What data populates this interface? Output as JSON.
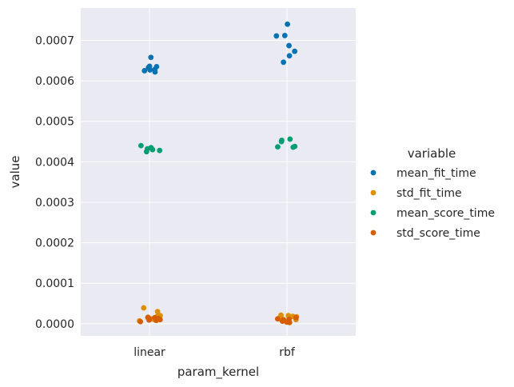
{
  "chart_data": {
    "type": "scatter",
    "style": "stripplot",
    "xlabel": "param_kernel",
    "ylabel": "value",
    "categories": [
      "linear",
      "rbf"
    ],
    "ylim": [
      -3e-05,
      0.00078
    ],
    "yticks": [
      0.0,
      0.0001,
      0.0002,
      0.0003,
      0.0004,
      0.0005,
      0.0006,
      0.0007
    ],
    "ytick_labels": [
      "0.0000",
      "0.0001",
      "0.0002",
      "0.0003",
      "0.0004",
      "0.0005",
      "0.0006",
      "0.0007"
    ],
    "grid": true,
    "legend": {
      "title": "variable",
      "placement": "right"
    },
    "series": [
      {
        "name": "mean_fit_time",
        "color": "#0173b2",
        "points": {
          "linear": [
            0.000628,
            0.000658,
            0.000633,
            0.000625,
            0.000635,
            0.000622,
            0.000636,
            0.000627
          ],
          "rbf": [
            0.00074,
            0.000711,
            0.000687,
            0.000662,
            0.000712,
            0.000673,
            0.000646
          ]
        }
      },
      {
        "name": "std_fit_time",
        "color": "#de8f05",
        "points": {
          "linear": [
            1.5e-05,
            3.9e-05,
            2e-05,
            1e-05,
            3e-05,
            1.8e-05,
            7e-06,
            1.2e-05
          ],
          "rbf": [
            1.7e-05,
            2.1e-05,
            1.8e-05,
            1.2e-05,
            1e-05,
            1.5e-05,
            8e-06,
            2e-05
          ]
        }
      },
      {
        "name": "mean_score_time",
        "color": "#029e73",
        "points": {
          "linear": [
            0.000425,
            0.000432,
            0.000435,
            0.00044,
            0.00043,
            0.000428
          ],
          "rbf": [
            0.00045,
            0.000453,
            0.000436,
            0.000438,
            0.000456,
            0.000437
          ]
        }
      },
      {
        "name": "std_score_time",
        "color": "#d55e00",
        "points": {
          "linear": [
            1.2e-05,
            8e-06,
            1.5e-05,
            5e-06,
            1.6e-05,
            1e-05,
            1.3e-05,
            9e-06
          ],
          "rbf": [
            8e-06,
            4e-06,
            1.2e-05,
            1.5e-05,
            6e-06,
            1e-05,
            3e-06,
            1.1e-05
          ]
        }
      }
    ]
  }
}
